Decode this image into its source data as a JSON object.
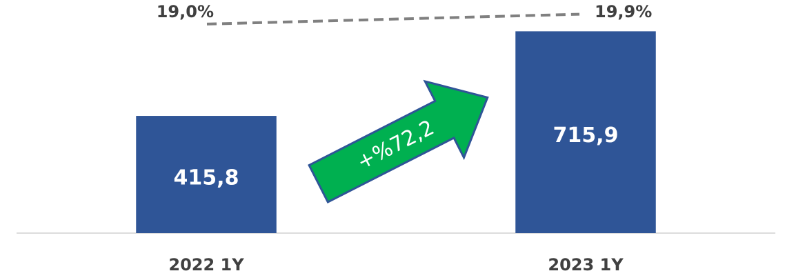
{
  "chart_data": {
    "type": "bar",
    "categories": [
      "2022 1Y",
      "2023 1Y"
    ],
    "values": [
      415.8,
      715.9
    ],
    "value_labels": [
      "415,8",
      "715,9"
    ],
    "color": "#2f5597",
    "ylim": [
      0,
      800
    ],
    "series": [
      {
        "type": "line",
        "axis": "y2",
        "color": "#808080",
        "values": [
          19.0,
          19.9
        ],
        "value_labels": [
          "19,0%",
          "19,9%"
        ]
      }
    ],
    "y2lim": [
      0,
      20.5
    ],
    "annotation": "+%72,2"
  }
}
